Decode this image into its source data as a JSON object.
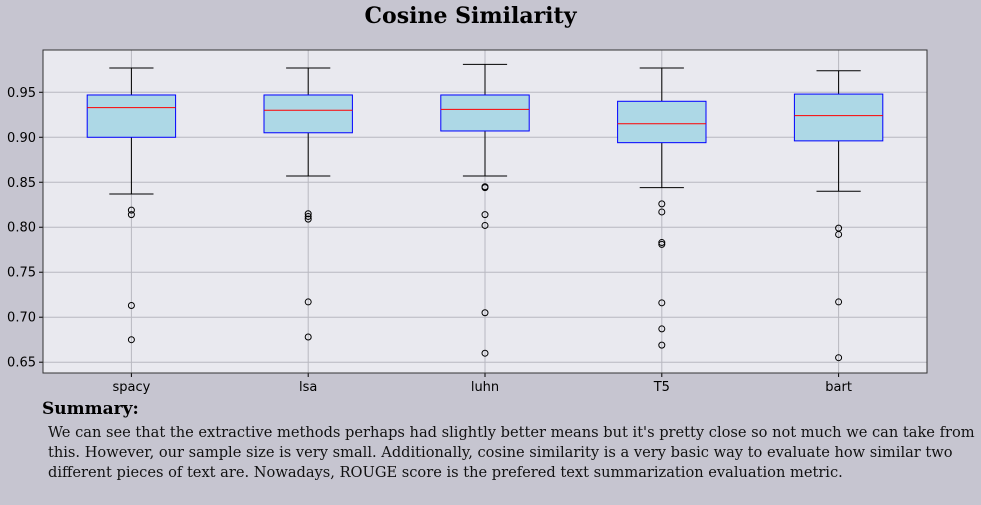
{
  "chart_data": {
    "type": "box",
    "title": "Cosine Similarity",
    "categories": [
      "spacy",
      "lsa",
      "luhn",
      "T5",
      "bart"
    ],
    "ylim": [
      0.638,
      0.997
    ],
    "yticks": [
      0.65,
      0.7,
      0.75,
      0.8,
      0.85,
      0.9,
      0.95
    ],
    "ytick_labels": [
      "0.65",
      "0.70",
      "0.75",
      "0.80",
      "0.85",
      "0.90",
      "0.95"
    ],
    "grid": true,
    "boxes": [
      {
        "q1": 0.9,
        "median": 0.933,
        "q3": 0.947,
        "whisker_low": 0.837,
        "whisker_high": 0.977,
        "outliers": [
          0.819,
          0.814,
          0.713,
          0.675
        ]
      },
      {
        "q1": 0.905,
        "median": 0.93,
        "q3": 0.947,
        "whisker_low": 0.857,
        "whisker_high": 0.977,
        "outliers": [
          0.815,
          0.812,
          0.809,
          0.717,
          0.678
        ]
      },
      {
        "q1": 0.907,
        "median": 0.931,
        "q3": 0.947,
        "whisker_low": 0.857,
        "whisker_high": 0.981,
        "outliers": [
          0.845,
          0.844,
          0.814,
          0.802,
          0.705,
          0.66
        ]
      },
      {
        "q1": 0.894,
        "median": 0.915,
        "q3": 0.94,
        "whisker_low": 0.844,
        "whisker_high": 0.977,
        "outliers": [
          0.826,
          0.817,
          0.783,
          0.781,
          0.716,
          0.687,
          0.669
        ]
      },
      {
        "q1": 0.896,
        "median": 0.924,
        "q3": 0.948,
        "whisker_low": 0.84,
        "whisker_high": 0.974,
        "outliers": [
          0.799,
          0.792,
          0.717,
          0.655
        ]
      }
    ],
    "colors": {
      "plot_bg": "#e9e9ef",
      "box_fill": "#add8e6",
      "box_edge": "#0000ff",
      "median": "#ff0000",
      "grid": "#b8b8c0"
    }
  },
  "summary": {
    "heading": "Summary:",
    "text": "We can see that the extractive methods perhaps had slightly better means but it's pretty close so not much we can take from this. However, our sample size is very small. Additionally, cosine similarity is a very basic way to evaluate how similar two different pieces of text are. Nowadays, ROUGE score is the prefered text summarization evaluation metric."
  }
}
